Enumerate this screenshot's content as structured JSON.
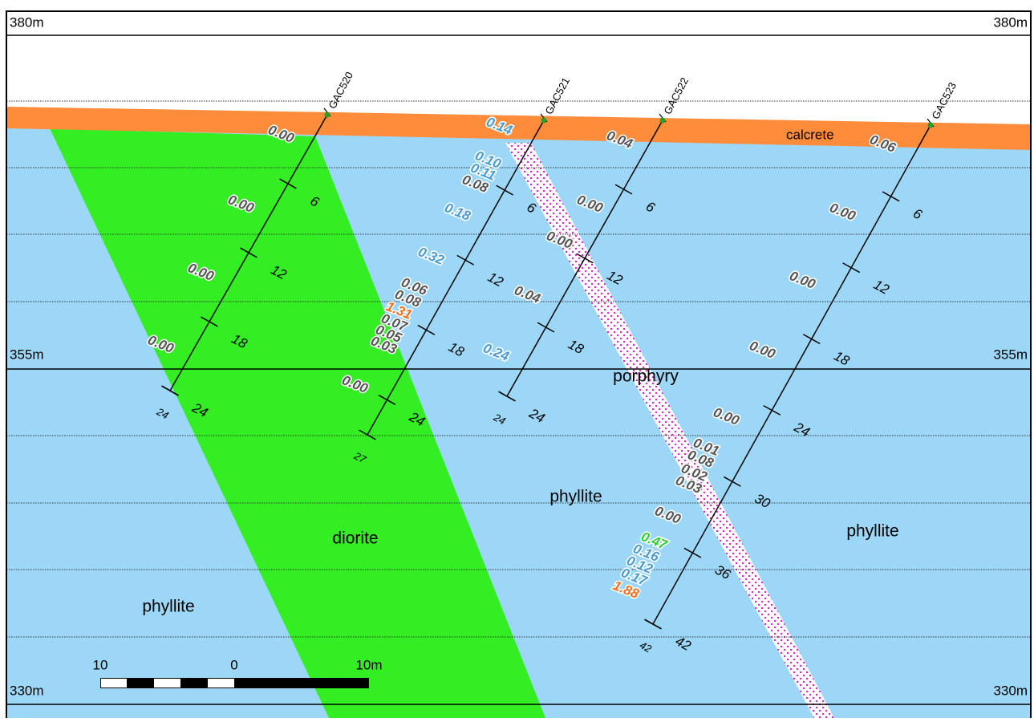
{
  "elevations": [
    "380m",
    "355m",
    "330m"
  ],
  "units": {
    "calcrete": "calcrete",
    "porphyry": "porphyry",
    "phyllite_center": "phyllite",
    "phyllite_right": "phyllite",
    "diorite": "diorite",
    "phyllite_left": "phyllite"
  },
  "holes": [
    {
      "name": "GAC520",
      "depth_ticks": [
        6,
        12,
        18,
        24
      ],
      "end_depth": 24,
      "assays": [
        {
          "text": "0.00",
          "color": "#555555"
        },
        {
          "text": "0.00",
          "color": "#555555"
        },
        {
          "text": "0.00",
          "color": "#555555"
        },
        {
          "text": "0.00",
          "color": "#555555"
        }
      ]
    },
    {
      "name": "GAC521",
      "depth_ticks": [
        6,
        12,
        18,
        24
      ],
      "end_depth": 27,
      "assays": [
        {
          "text": "0.14",
          "color": "#4a9bd0"
        },
        {
          "text": "0.10",
          "color": "#4a9bd0"
        },
        {
          "text": "0.11",
          "color": "#4a9bd0"
        },
        {
          "text": "0.08",
          "color": "#555555"
        },
        {
          "text": "0.18",
          "color": "#4a9bd0"
        },
        {
          "text": "0.32",
          "color": "#4a9bd0"
        },
        {
          "text": "0.06",
          "color": "#555555"
        },
        {
          "text": "0.08",
          "color": "#555555"
        },
        {
          "text": "1.31",
          "color": "#f07020"
        },
        {
          "text": "0.07",
          "color": "#555555"
        },
        {
          "text": "0.05",
          "color": "#555555"
        },
        {
          "text": "0.03",
          "color": "#555555"
        },
        {
          "text": "0.00",
          "color": "#555555"
        }
      ]
    },
    {
      "name": "GAC522",
      "depth_ticks": [
        6,
        12,
        18,
        24
      ],
      "end_depth": 24,
      "assays": [
        {
          "text": "0.04",
          "color": "#555555"
        },
        {
          "text": "0.00",
          "color": "#555555"
        },
        {
          "text": "0.00",
          "color": "#555555"
        },
        {
          "text": "0.04",
          "color": "#555555"
        },
        {
          "text": "0.24",
          "color": "#4a9bd0"
        }
      ]
    },
    {
      "name": "GAC523",
      "depth_ticks": [
        6,
        12,
        18,
        24,
        30,
        36,
        42
      ],
      "end_depth": 42,
      "assays": [
        {
          "text": "0.06",
          "color": "#555555"
        },
        {
          "text": "0.00",
          "color": "#555555"
        },
        {
          "text": "0.00",
          "color": "#555555"
        },
        {
          "text": "0.00",
          "color": "#555555"
        },
        {
          "text": "0.00",
          "color": "#555555"
        },
        {
          "text": "0.01",
          "color": "#555555"
        },
        {
          "text": "0.08",
          "color": "#555555"
        },
        {
          "text": "0.02",
          "color": "#555555"
        },
        {
          "text": "0.03",
          "color": "#555555"
        },
        {
          "text": "0.00",
          "color": "#555555"
        },
        {
          "text": "0.47",
          "color": "#33cc33"
        },
        {
          "text": "0.16",
          "color": "#4a9bd0"
        },
        {
          "text": "0.12",
          "color": "#4a9bd0"
        },
        {
          "text": "0.17",
          "color": "#4a9bd0"
        },
        {
          "text": "1.88",
          "color": "#f07020"
        }
      ]
    }
  ],
  "scale_bar": {
    "labels": [
      "10",
      "0",
      "10m"
    ]
  }
}
